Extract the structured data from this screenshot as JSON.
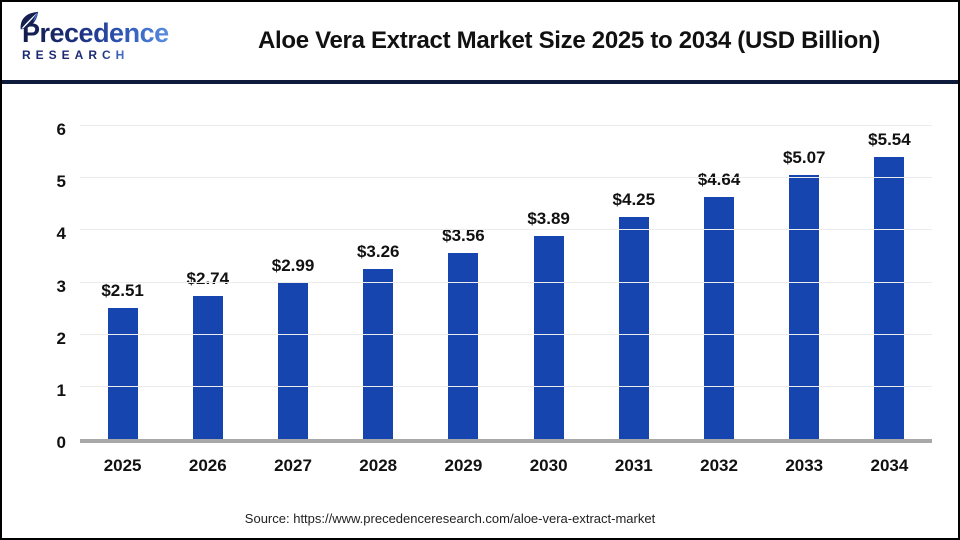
{
  "header": {
    "logo": {
      "line1": "Precedence",
      "line2": "RESEARCH",
      "icon": "leaf-icon"
    },
    "title": "Aloe Vera Extract Market Size 2025 to 2034 (USD Billion)"
  },
  "chart_data": {
    "type": "bar",
    "title": "Aloe Vera Extract Market Size 2025 to 2034 (USD Billion)",
    "categories": [
      "2025",
      "2026",
      "2027",
      "2028",
      "2029",
      "2030",
      "2031",
      "2032",
      "2033",
      "2034"
    ],
    "values": [
      2.51,
      2.74,
      2.99,
      3.26,
      3.56,
      3.89,
      4.25,
      4.64,
      5.07,
      5.54
    ],
    "value_labels": [
      "$2.51",
      "$2.74",
      "$2.99",
      "$3.26",
      "$3.56",
      "$3.89",
      "$4.25",
      "$4.64",
      "$5.07",
      "$5.54"
    ],
    "xlabel": "",
    "ylabel": "",
    "ylim": [
      0,
      6
    ],
    "yticks": [
      0,
      1,
      2,
      3,
      4,
      5,
      6
    ],
    "grid": true,
    "legend": false,
    "bar_color": "#1745b0"
  },
  "footer": {
    "source": "Source: https://www.precedenceresearch.com/aloe-vera-extract-market"
  },
  "colors": {
    "bar": "#1745b0",
    "header_rule": "#0e1b3d",
    "frame_border": "#000000",
    "gridline": "#ececec",
    "baseline": "#a8a8a8",
    "text": "#111111",
    "logo_navy": "#1b2a72",
    "logo_blue": "#4a7fd6"
  }
}
